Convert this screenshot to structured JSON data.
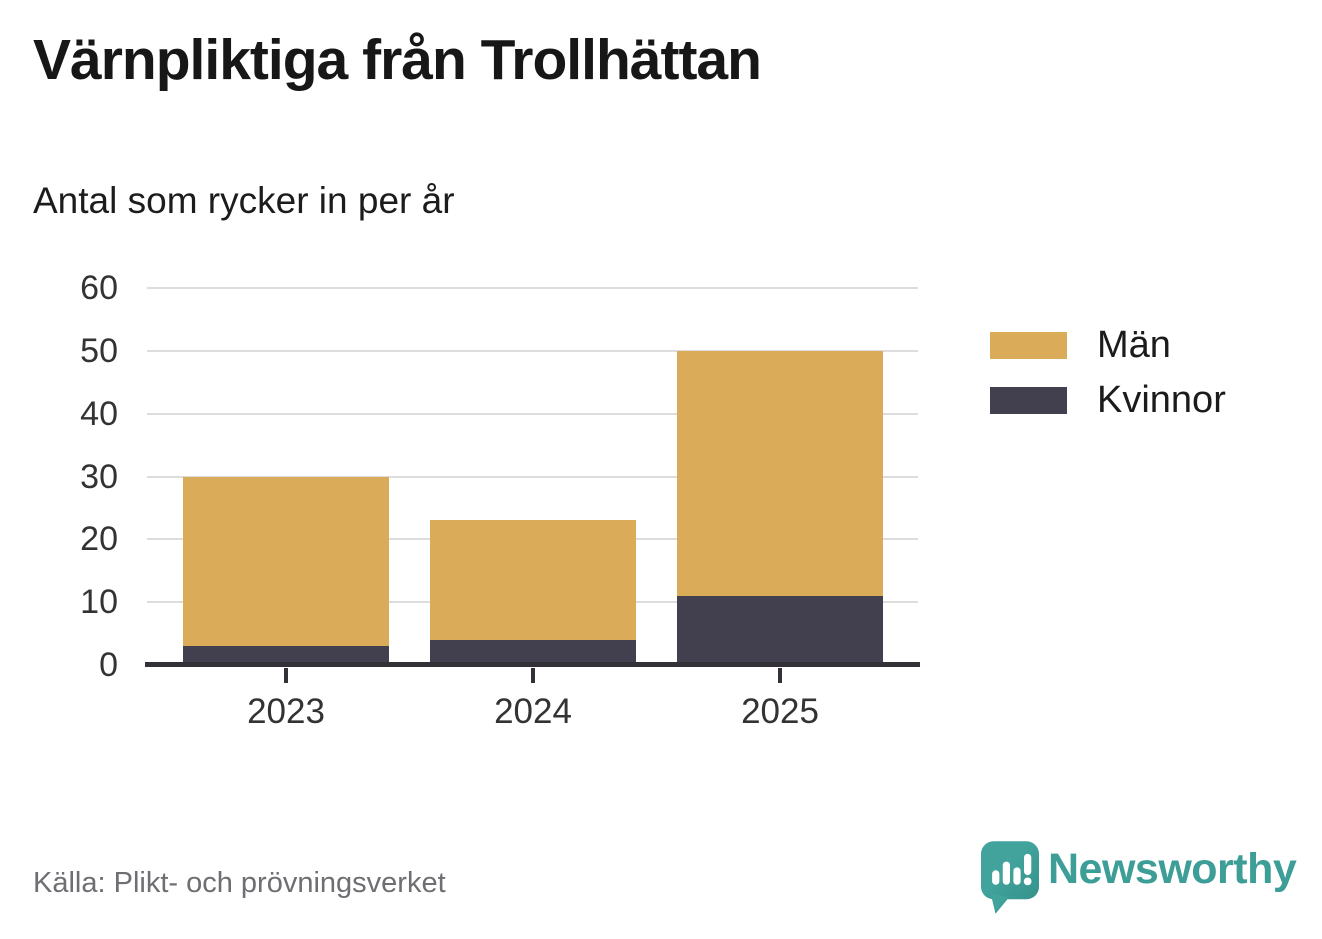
{
  "title": "Värnpliktiga från Trollhättan",
  "subtitle": "Antal som rycker in per år",
  "source": "Källa: Plikt- och prövningsverket",
  "brand": {
    "name": "Newsworthy",
    "color": "#3D9D97",
    "icon": "speech-bubble-bar-chart"
  },
  "chart_data": {
    "type": "bar",
    "stacked": true,
    "title": "Värnpliktiga från Trollhättan",
    "subtitle": "Antal som rycker in per år",
    "categories": [
      "2023",
      "2024",
      "2025"
    ],
    "series": [
      {
        "name": "Män",
        "color": "#DAAC5A",
        "values": [
          27,
          19,
          39
        ]
      },
      {
        "name": "Kvinnor",
        "color": "#423F4E",
        "values": [
          3,
          4,
          11
        ]
      }
    ],
    "stacked_totals": [
      30,
      23,
      50
    ],
    "stack_order": "last-series-at-bottom",
    "yticks": [
      0,
      10,
      20,
      30,
      40,
      50,
      60
    ],
    "ylim": [
      0,
      60
    ],
    "xlabel": "",
    "ylabel": "",
    "legend": [
      "Män",
      "Kvinnor"
    ],
    "legend_position": "right",
    "grid": "horizontal",
    "gridline_color": "#DDDDDD",
    "axis_color": "#333137",
    "tick_label_color": "#333333"
  }
}
